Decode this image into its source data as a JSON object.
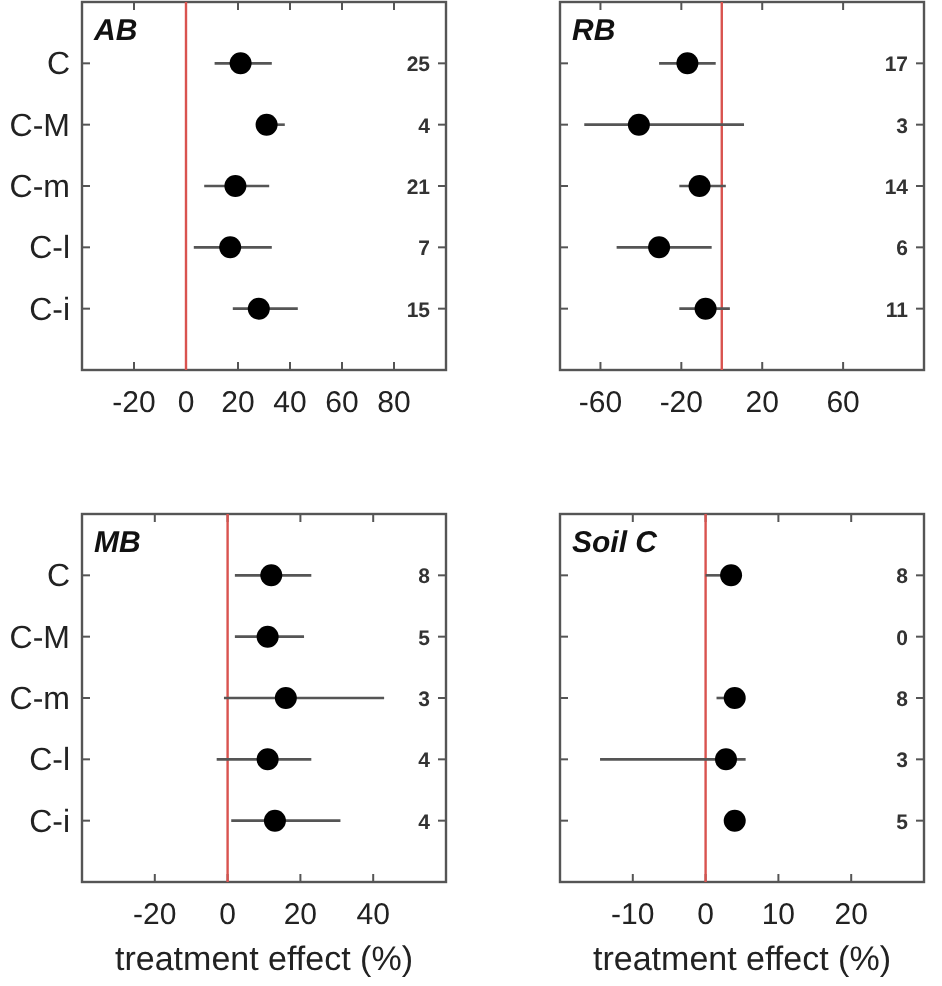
{
  "chart_data": [
    {
      "type": "scatter",
      "orientation": "horizontal",
      "title": "AB",
      "categories": [
        "C",
        "C-M",
        "C-m",
        "C-l",
        "C-i"
      ],
      "values": [
        21,
        31,
        19,
        17,
        28
      ],
      "errors": [
        [
          11,
          33
        ],
        [
          28,
          38
        ],
        [
          7,
          32
        ],
        [
          3,
          33
        ],
        [
          18,
          43
        ]
      ],
      "color": "#000000",
      "marker": "circle",
      "xlim": [
        -40,
        100
      ],
      "xticks": [
        -20,
        0,
        20,
        40,
        60,
        80
      ],
      "ref_lines": [
        {
          "axis": "x",
          "value": 0,
          "color": "#d9534f"
        }
      ],
      "annotations": [
        "25",
        "4",
        "21",
        "7",
        "15"
      ]
    },
    {
      "type": "scatter",
      "orientation": "horizontal",
      "title": "RB",
      "categories": [
        null,
        null,
        null,
        null,
        null
      ],
      "values": [
        -17,
        -41,
        -11,
        -31,
        -8
      ],
      "errors": [
        [
          -31,
          -3
        ],
        [
          -68,
          11
        ],
        [
          -21,
          2
        ],
        [
          -52,
          -5
        ],
        [
          -21,
          4
        ]
      ],
      "color": "#000000",
      "marker": "circle",
      "xlim": [
        -80,
        100
      ],
      "xticks": [
        -60,
        -20,
        20,
        60
      ],
      "tick_labels": "x",
      "ref_lines": [
        {
          "axis": "x",
          "value": 0,
          "color": "#d9534f"
        }
      ],
      "annotations": [
        "17",
        "3",
        "14",
        "6",
        "11"
      ]
    },
    {
      "type": "scatter",
      "orientation": "horizontal",
      "title": "MB",
      "xlabel": "treatment effect (%)",
      "categories": [
        "C",
        "C-M",
        "C-m",
        "C-l",
        "C-i"
      ],
      "values": [
        12,
        11,
        16,
        11,
        13
      ],
      "errors": [
        [
          2,
          23
        ],
        [
          2,
          21
        ],
        [
          -1,
          43
        ],
        [
          -3,
          23
        ],
        [
          1,
          31
        ]
      ],
      "color": "#000000",
      "marker": "circle",
      "xlim": [
        -40,
        60
      ],
      "xticks": [
        -20,
        0,
        20,
        40
      ],
      "ref_lines": [
        {
          "axis": "x",
          "value": 0,
          "color": "#d9534f"
        }
      ],
      "annotations": [
        "8",
        "5",
        "3",
        "4",
        "4"
      ]
    },
    {
      "type": "scatter",
      "orientation": "horizontal",
      "title": "Soil C",
      "xlabel": "treatment effect (%)",
      "categories": [
        null,
        null,
        null,
        null,
        null
      ],
      "values": [
        3.5,
        null,
        4,
        2.8,
        4
      ],
      "errors": [
        [
          0,
          4
        ],
        null,
        [
          1.5,
          4.5
        ],
        [
          -14.5,
          5.5
        ],
        null
      ],
      "color": "#000000",
      "marker": "circle",
      "xlim": [
        -20,
        30
      ],
      "xticks": [
        -10,
        0,
        10,
        20
      ],
      "tick_labels": "x",
      "ref_lines": [
        {
          "axis": "x",
          "value": 0,
          "color": "#d9534f"
        }
      ],
      "annotations": [
        "8",
        "0",
        "8",
        "3",
        "5"
      ]
    }
  ]
}
